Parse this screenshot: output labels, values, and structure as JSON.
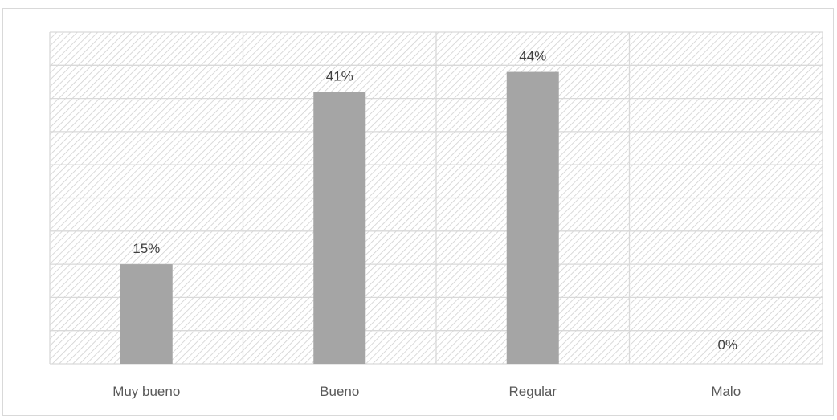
{
  "chart_data": {
    "type": "bar",
    "title": "",
    "xlabel": "",
    "ylabel": "",
    "categories": [
      "Muy bueno",
      "Bueno",
      "Regular",
      "Malo"
    ],
    "values": [
      15,
      41,
      44,
      0
    ],
    "value_labels": [
      "15%",
      "41%",
      "44%",
      "0%"
    ],
    "ylim": [
      0,
      50
    ],
    "grid": true,
    "legend": "none",
    "bar_color": "#a5a5a5",
    "grid_color": "#d9d9d9",
    "plot_pattern": "diagonal-hatch"
  }
}
